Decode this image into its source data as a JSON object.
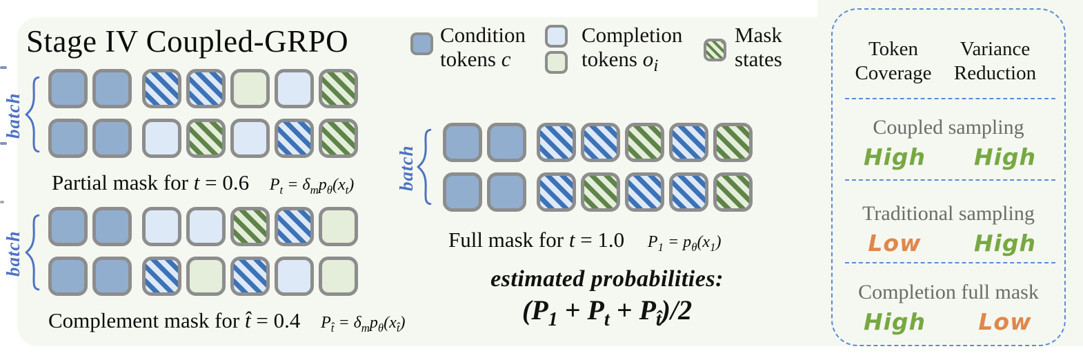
{
  "title": "Stage IV Coupled-GRPO",
  "batch_label": "batch",
  "legend": {
    "condition": {
      "line1": "Condition",
      "line2_html": "tokens <i>c</i>"
    },
    "completion": {
      "line1": "Completion",
      "line2_html": "tokens <i>o<sub>i</sub></i>"
    },
    "mask": {
      "line1": "Mask",
      "line2": "states"
    }
  },
  "token_types": {
    "c": "condition-token",
    "b": "completion-token-blue",
    "g": "completion-token-green",
    "mb": "masked-state-blue-token",
    "mg": "masked-state-green-token"
  },
  "groups": [
    {
      "id": "partial",
      "caption": "Partial mask for ",
      "caption_math_html": "<i>t</i> = 0.6",
      "formula_html": "P<sub>t</sub> = δ<sub>m</sub>p<sub>θ</sub>(x<sub>t</sub>)",
      "rows": [
        [
          "c",
          "c",
          "mb",
          "mb",
          "g",
          "b",
          "mg"
        ],
        [
          "c",
          "c",
          "b",
          "mg",
          "b",
          "mb",
          "mg"
        ]
      ]
    },
    {
      "id": "complement",
      "caption": "Complement mask for ",
      "caption_math_html": "<i>t̂</i> = 0.4",
      "formula_html": "P<sub>t̂</sub> = δ<sub>m</sub>p<sub>θ</sub>(x<sub>t̂</sub>)",
      "rows": [
        [
          "c",
          "c",
          "b",
          "b",
          "mg",
          "mb",
          "g"
        ],
        [
          "c",
          "c",
          "mb",
          "g",
          "mb",
          "b",
          "g"
        ]
      ]
    },
    {
      "id": "full",
      "caption": "Full mask for ",
      "caption_math_html": "<i>t</i> = 1.0",
      "formula_html": "P<sub>1</sub> = p<sub>θ</sub>(x<sub>1</sub>)",
      "rows": [
        [
          "c",
          "c",
          "mb",
          "mb",
          "mg",
          "mb",
          "mg"
        ],
        [
          "c",
          "c",
          "mb",
          "mg",
          "mb",
          "mb",
          "mg"
        ]
      ]
    }
  ],
  "estimated": {
    "label": "estimated probabilities:",
    "formula_html": "(P<sub>1</sub> + P<sub>t</sub> + P<sub>t̂</sub>)/2"
  },
  "panel": {
    "headers": [
      {
        "line1": "Token",
        "line2": "Coverage"
      },
      {
        "line1": "Variance",
        "line2": "Reduction"
      }
    ],
    "rows": [
      {
        "label": "Coupled sampling",
        "values": [
          {
            "text": "High",
            "tone": "good"
          },
          {
            "text": "High",
            "tone": "good"
          }
        ]
      },
      {
        "label": "Traditional sampling",
        "values": [
          {
            "text": "Low",
            "tone": "bad"
          },
          {
            "text": "High",
            "tone": "good"
          }
        ]
      },
      {
        "label": "Completion full mask",
        "values": [
          {
            "text": "High",
            "tone": "good"
          },
          {
            "text": "Low",
            "tone": "bad"
          }
        ]
      }
    ]
  },
  "colors": {
    "background": "#f5f8f0",
    "condition_token": "#92aecf",
    "completion_blue": "#dde9f6",
    "completion_green": "#e4eeda",
    "mask_stripe_blue": "#3d72b6",
    "mask_stripe_green": "#5e8449",
    "token_border": "#8d8d8d",
    "batch_blue": "#4d72c4",
    "dashed_blue": "#5c88d8",
    "value_good": "#77a842",
    "value_bad": "#e0874b",
    "row_label_gray": "#6b6b6b"
  }
}
